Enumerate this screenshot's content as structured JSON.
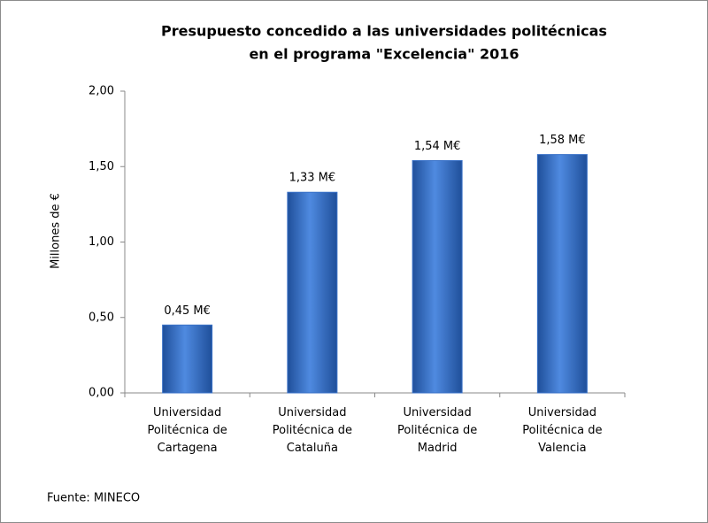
{
  "chart_data": {
    "type": "bar",
    "title": [
      "Presupuesto concedido a las universidades politécnicas",
      "en el programa \"Excelencia\" 2016"
    ],
    "y_label": "Millones de €",
    "source": "Fuente: MINECO",
    "categories": [
      "Universidad Politécnica de Cartagena",
      "Universidad Politécnica de Cataluña",
      "Universidad Politécnica de Madrid",
      "Universidad Politécnica de Valencia"
    ],
    "values": [
      0.45,
      1.33,
      1.54,
      1.58
    ],
    "value_labels": [
      "0,45 M€",
      "1,33 M€",
      "1,54 M€",
      "1,58 M€"
    ],
    "color": "#3a72c8",
    "ylim": [
      0,
      2
    ],
    "yticks": [
      {
        "value": 0,
        "label": "0,00"
      },
      {
        "value": 0.5,
        "label": "0,50"
      },
      {
        "value": 1,
        "label": "1,00"
      },
      {
        "value": 1.5,
        "label": "1,50"
      },
      {
        "value": 2,
        "label": "2,00"
      }
    ]
  }
}
